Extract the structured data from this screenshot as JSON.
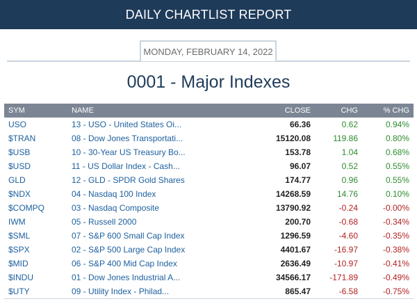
{
  "header": {
    "title": "DAILY CHARTLIST REPORT"
  },
  "report": {
    "date": "MONDAY, FEBRUARY 14, 2022",
    "list_title": "0001 - Major Indexes"
  },
  "table": {
    "columns": [
      "SYM",
      "NAME",
      "CLOSE",
      "CHG",
      "% CHG"
    ],
    "rows": [
      {
        "sym": "USO",
        "name": "13 - USO - United States Oi...",
        "close": "66.36",
        "chg": "0.62",
        "pct": "0.94%",
        "dir": "up"
      },
      {
        "sym": "$TRAN",
        "name": "08 - Dow Jones Transportati...",
        "close": "15120.08",
        "chg": "119.86",
        "pct": "0.80%",
        "dir": "up"
      },
      {
        "sym": "$USB",
        "name": "10 - 30-Year US Treasury Bo...",
        "close": "153.78",
        "chg": "1.04",
        "pct": "0.68%",
        "dir": "up"
      },
      {
        "sym": "$USD",
        "name": "11 - US Dollar Index - Cash...",
        "close": "96.07",
        "chg": "0.52",
        "pct": "0.55%",
        "dir": "up"
      },
      {
        "sym": "GLD",
        "name": "12 - GLD - SPDR Gold Shares",
        "close": "174.77",
        "chg": "0.96",
        "pct": "0.55%",
        "dir": "up"
      },
      {
        "sym": "$NDX",
        "name": "04 - Nasdaq 100 Index",
        "close": "14268.59",
        "chg": "14.76",
        "pct": "0.10%",
        "dir": "up"
      },
      {
        "sym": "$COMPQ",
        "name": "03 - Nasdaq Composite",
        "close": "13790.92",
        "chg": "-0.24",
        "pct": "-0.00%",
        "dir": "down"
      },
      {
        "sym": "IWM",
        "name": "05 - Russell 2000",
        "close": "200.70",
        "chg": "-0.68",
        "pct": "-0.34%",
        "dir": "down"
      },
      {
        "sym": "$SML",
        "name": "07 - S&P 600 Small Cap Index",
        "close": "1296.59",
        "chg": "-4.60",
        "pct": "-0.35%",
        "dir": "down"
      },
      {
        "sym": "$SPX",
        "name": "02 - S&P 500 Large Cap Index",
        "close": "4401.67",
        "chg": "-16.97",
        "pct": "-0.38%",
        "dir": "down"
      },
      {
        "sym": "$MID",
        "name": "06 - S&P 400 Mid Cap Index",
        "close": "2636.49",
        "chg": "-10.97",
        "pct": "-0.41%",
        "dir": "down"
      },
      {
        "sym": "$INDU",
        "name": "01 - Dow Jones Industrial A...",
        "close": "34566.17",
        "chg": "-171.89",
        "pct": "-0.49%",
        "dir": "down"
      },
      {
        "sym": "$UTY",
        "name": "09 - Utility Index - Philad...",
        "close": "865.47",
        "chg": "-6.58",
        "pct": "-0.75%",
        "dir": "down"
      }
    ]
  },
  "colors": {
    "header_bg": "#1f3b5a",
    "table_header_bg": "#7b8594",
    "link": "#1c5f9e",
    "positive": "#2e8b2e",
    "negative": "#b22222"
  }
}
